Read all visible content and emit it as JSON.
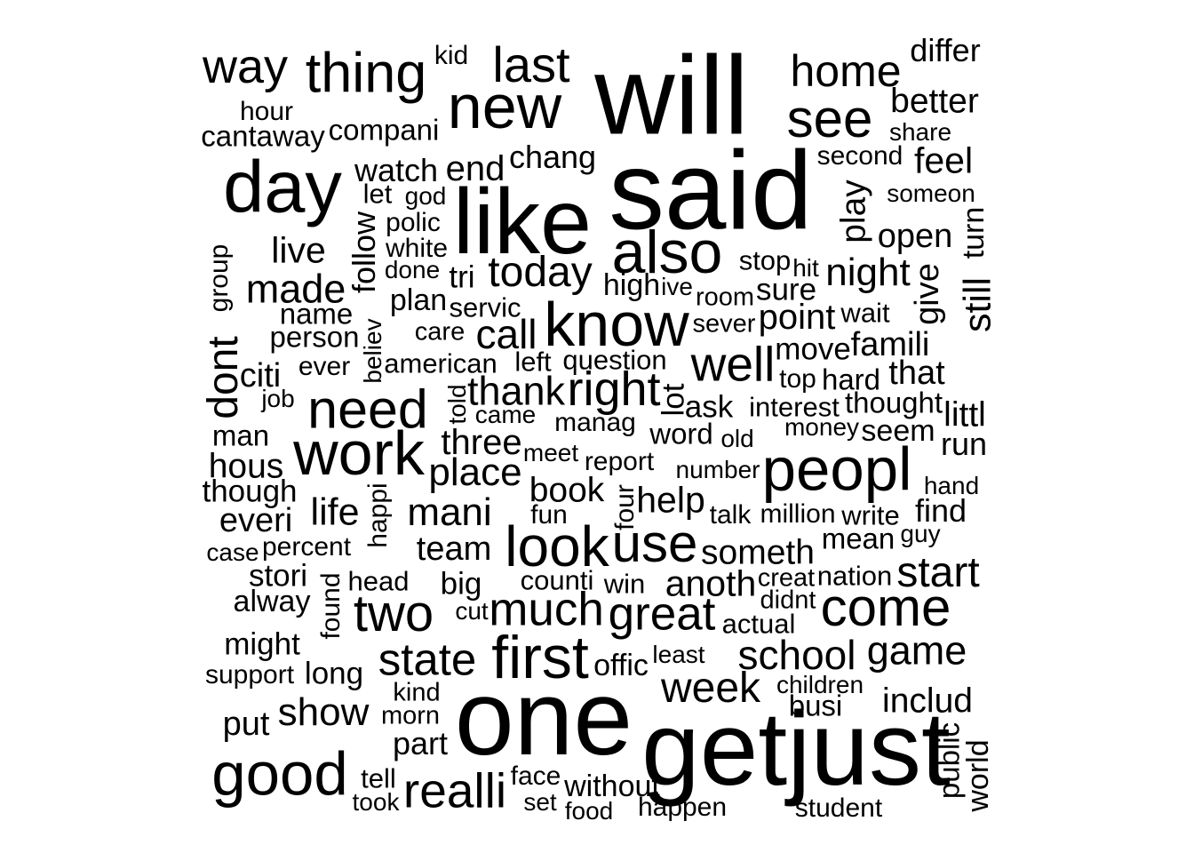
{
  "words": [
    {
      "text": "will",
      "weight": 100
    },
    {
      "text": "said",
      "weight": 100
    },
    {
      "text": "one",
      "weight": 96
    },
    {
      "text": "getjust",
      "weight": 94
    },
    {
      "text": "like",
      "weight": 83
    },
    {
      "text": "new",
      "weight": 56
    },
    {
      "text": "know",
      "weight": 56
    },
    {
      "text": "work",
      "weight": 56
    },
    {
      "text": "peopl",
      "weight": 55
    },
    {
      "text": "good",
      "weight": 55
    },
    {
      "text": "day",
      "weight": 66
    },
    {
      "text": "also",
      "weight": 54
    },
    {
      "text": "first",
      "weight": 54
    },
    {
      "text": "see",
      "weight": 48
    },
    {
      "text": "look",
      "weight": 51
    },
    {
      "text": "thing",
      "weight": 50
    },
    {
      "text": "need",
      "weight": 49
    },
    {
      "text": "use",
      "weight": 48
    },
    {
      "text": "come",
      "weight": 48
    },
    {
      "text": "two",
      "weight": 46
    },
    {
      "text": "realli",
      "weight": 44
    },
    {
      "text": "last",
      "weight": 45
    },
    {
      "text": "way",
      "weight": 43
    },
    {
      "text": "right",
      "weight": 43
    },
    {
      "text": "great",
      "weight": 42
    },
    {
      "text": "much",
      "weight": 42
    },
    {
      "text": "well",
      "weight": 44
    },
    {
      "text": "state",
      "weight": 41
    },
    {
      "text": "home",
      "weight": 40
    },
    {
      "text": "today",
      "weight": 38
    },
    {
      "text": "week",
      "weight": 38
    },
    {
      "text": "school",
      "weight": 37
    },
    {
      "text": "made",
      "weight": 36
    },
    {
      "text": "dont",
      "weight": 38
    },
    {
      "text": "start",
      "weight": 38
    },
    {
      "text": "call",
      "weight": 37
    },
    {
      "text": "thank",
      "weight": 36
    },
    {
      "text": "game",
      "weight": 36
    },
    {
      "text": "show",
      "weight": 35
    },
    {
      "text": "mani",
      "weight": 35
    },
    {
      "text": "night",
      "weight": 35
    },
    {
      "text": "place",
      "weight": 35
    },
    {
      "text": "still",
      "weight": 34
    },
    {
      "text": "life",
      "weight": 34
    },
    {
      "text": "help",
      "weight": 33
    },
    {
      "text": "anoth",
      "weight": 33
    },
    {
      "text": "end",
      "weight": 32
    },
    {
      "text": "live",
      "weight": 33
    },
    {
      "text": "feel",
      "weight": 33
    },
    {
      "text": "point",
      "weight": 32
    },
    {
      "text": "three",
      "weight": 32
    },
    {
      "text": "book",
      "weight": 31
    },
    {
      "text": "includ",
      "weight": 31
    },
    {
      "text": "someth",
      "weight": 31
    },
    {
      "text": "better",
      "weight": 31
    },
    {
      "text": "littl",
      "weight": 31
    },
    {
      "text": "play",
      "weight": 31
    },
    {
      "text": "hous",
      "weight": 31
    },
    {
      "text": "put",
      "weight": 30
    },
    {
      "text": "citi",
      "weight": 30
    },
    {
      "text": "team",
      "weight": 30
    },
    {
      "text": "differ",
      "weight": 29
    },
    {
      "text": "famili",
      "weight": 30
    },
    {
      "text": "give",
      "weight": 30
    },
    {
      "text": "everi",
      "weight": 30
    },
    {
      "text": "that",
      "weight": 30
    },
    {
      "text": "open",
      "weight": 30
    },
    {
      "text": "follow",
      "weight": 29
    },
    {
      "text": "watch",
      "weight": 29
    },
    {
      "text": "part",
      "weight": 29
    },
    {
      "text": "run",
      "weight": 29
    },
    {
      "text": "chang",
      "weight": 29
    },
    {
      "text": "find",
      "weight": 29
    },
    {
      "text": "stori",
      "weight": 28
    },
    {
      "text": "might",
      "weight": 28
    },
    {
      "text": "long",
      "weight": 28
    },
    {
      "text": "ask",
      "weight": 28
    },
    {
      "text": "big",
      "weight": 28
    },
    {
      "text": "though",
      "weight": 28
    },
    {
      "text": "lot",
      "weight": 28
    },
    {
      "text": "sure",
      "weight": 28
    },
    {
      "text": "move",
      "weight": 28
    },
    {
      "text": "seem",
      "weight": 27
    },
    {
      "text": "high",
      "weight": 27
    },
    {
      "text": "alway",
      "weight": 27
    },
    {
      "text": "tri",
      "weight": 28
    },
    {
      "text": "world",
      "weight": 27
    },
    {
      "text": "offic",
      "weight": 27
    },
    {
      "text": "without",
      "weight": 27
    },
    {
      "text": "plan",
      "weight": 27
    },
    {
      "text": "turn",
      "weight": 27
    },
    {
      "text": "cantaway",
      "weight": 26
    },
    {
      "text": "name",
      "weight": 26
    },
    {
      "text": "person",
      "weight": 26
    },
    {
      "text": "man",
      "weight": 26
    },
    {
      "text": "word",
      "weight": 26
    },
    {
      "text": "busi",
      "weight": 26
    },
    {
      "text": "public",
      "weight": 26
    },
    {
      "text": "mean",
      "weight": 26
    },
    {
      "text": "hard",
      "weight": 26
    },
    {
      "text": "thought",
      "weight": 26
    },
    {
      "text": "counti",
      "weight": 25
    },
    {
      "text": "write",
      "weight": 25
    },
    {
      "text": "head",
      "weight": 25
    },
    {
      "text": "let",
      "weight": 25
    },
    {
      "text": "wait",
      "weight": 25
    },
    {
      "text": "interest",
      "weight": 25
    },
    {
      "text": "left",
      "weight": 25
    },
    {
      "text": "compani",
      "weight": 26
    },
    {
      "text": "tell",
      "weight": 25
    },
    {
      "text": "win",
      "weight": 25
    },
    {
      "text": "nation",
      "weight": 25
    },
    {
      "text": "servic",
      "weight": 25
    },
    {
      "text": "actual",
      "weight": 25
    },
    {
      "text": "question",
      "weight": 25
    },
    {
      "text": "stop",
      "weight": 25
    },
    {
      "text": "american",
      "weight": 25
    },
    {
      "text": "happi",
      "weight": 24
    },
    {
      "text": "found",
      "weight": 24
    },
    {
      "text": "fun",
      "weight": 24
    },
    {
      "text": "four",
      "weight": 24
    },
    {
      "text": "second",
      "weight": 24
    },
    {
      "text": "report",
      "weight": 24
    },
    {
      "text": "top",
      "weight": 24
    },
    {
      "text": "manag",
      "weight": 24
    },
    {
      "text": "talk",
      "weight": 24
    },
    {
      "text": "million",
      "weight": 24
    },
    {
      "text": "face",
      "weight": 24
    },
    {
      "text": "kid",
      "weight": 24
    },
    {
      "text": "hour",
      "weight": 24
    },
    {
      "text": "group",
      "weight": 24
    },
    {
      "text": "polic",
      "weight": 24
    },
    {
      "text": "white",
      "weight": 24
    },
    {
      "text": "ever",
      "weight": 24
    },
    {
      "text": "percent",
      "weight": 24
    },
    {
      "text": "morn",
      "weight": 23
    },
    {
      "text": "kind",
      "weight": 23
    },
    {
      "text": "care",
      "weight": 23
    },
    {
      "text": "support",
      "weight": 24
    },
    {
      "text": "creat",
      "weight": 23
    },
    {
      "text": "didnt",
      "weight": 23
    },
    {
      "text": "room",
      "weight": 23
    },
    {
      "text": "sever",
      "weight": 23
    },
    {
      "text": "happen",
      "weight": 24
    },
    {
      "text": "student",
      "weight": 24
    },
    {
      "text": "hit",
      "weight": 22
    },
    {
      "text": "ive",
      "weight": 22
    },
    {
      "text": "god",
      "weight": 22
    },
    {
      "text": "done",
      "weight": 22
    },
    {
      "text": "job",
      "weight": 22
    },
    {
      "text": "believ",
      "weight": 22
    },
    {
      "text": "told",
      "weight": 22
    },
    {
      "text": "came",
      "weight": 22
    },
    {
      "text": "old",
      "weight": 22
    },
    {
      "text": "meet",
      "weight": 22
    },
    {
      "text": "number",
      "weight": 22
    },
    {
      "text": "case",
      "weight": 22
    },
    {
      "text": "guy",
      "weight": 22
    },
    {
      "text": "hand",
      "weight": 22
    },
    {
      "text": "money",
      "weight": 22
    },
    {
      "text": "cut",
      "weight": 22
    },
    {
      "text": "least",
      "weight": 22
    },
    {
      "text": "children",
      "weight": 22
    },
    {
      "text": "took",
      "weight": 22
    },
    {
      "text": "set",
      "weight": 22
    },
    {
      "text": "food",
      "weight": 22
    },
    {
      "text": "share",
      "weight": 22
    },
    {
      "text": "someon",
      "weight": 22
    }
  ]
}
